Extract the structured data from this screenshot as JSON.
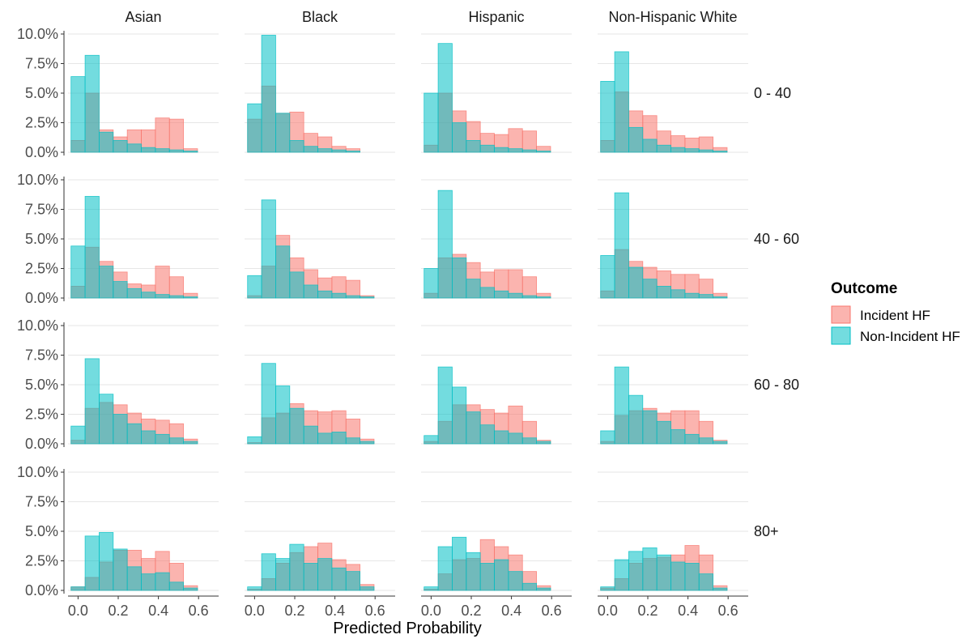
{
  "chart_data": {
    "type": "bar",
    "subtype": "faceted-histogram",
    "xlabel": "Predicted Probability",
    "ylabel": "",
    "ylim": [
      0,
      10
    ],
    "yticks": [
      "0.0%",
      "2.5%",
      "5.0%",
      "7.5%",
      "10.0%"
    ],
    "ytick_values": [
      0,
      2.5,
      5,
      7.5,
      10
    ],
    "xlim": [
      -0.05,
      0.7
    ],
    "xticks": [
      "0.0",
      "0.2",
      "0.4",
      "0.6"
    ],
    "xtick_values": [
      0,
      0.2,
      0.4,
      0.6
    ],
    "bin_centers": [
      0,
      0.07,
      0.14,
      0.21,
      0.28,
      0.35,
      0.42,
      0.49,
      0.56,
      0.63
    ],
    "bin_width": 0.07,
    "grid": true,
    "columns": [
      "Asian",
      "Black",
      "Hispanic",
      "Non-Hispanic White"
    ],
    "rows": [
      "0 - 40",
      "40 - 60",
      "60 - 80",
      "80+"
    ],
    "legend": {
      "title": "Outcome",
      "placement": "right",
      "entries": [
        {
          "name": "Incident HF",
          "color": "#F8766D"
        },
        {
          "name": "Non-Incident HF",
          "color": "#00BFC4"
        }
      ]
    },
    "series": [
      {
        "name": "Incident HF",
        "color": "#F8766D",
        "panels": [
          [
            [
              1.0,
              5.0,
              1.9,
              1.3,
              1.9,
              1.9,
              2.9,
              2.8,
              0.3,
              0.0
            ],
            [
              2.8,
              5.6,
              3.3,
              3.4,
              1.6,
              1.3,
              0.5,
              0.3,
              0.0,
              0.0
            ],
            [
              0.6,
              5.0,
              3.5,
              2.6,
              1.6,
              1.5,
              2.0,
              1.8,
              0.5,
              0.0
            ],
            [
              1.0,
              5.1,
              3.5,
              3.1,
              1.8,
              1.4,
              1.2,
              1.3,
              0.4,
              0.0
            ]
          ],
          [
            [
              1.0,
              4.3,
              3.1,
              2.2,
              1.2,
              1.1,
              2.7,
              1.8,
              0.4,
              0.0
            ],
            [
              0.2,
              2.7,
              5.3,
              3.4,
              2.4,
              1.7,
              1.8,
              1.5,
              0.2,
              0.0
            ],
            [
              0.4,
              3.4,
              3.7,
              3.0,
              2.2,
              2.4,
              2.4,
              1.8,
              0.4,
              0.0
            ],
            [
              0.6,
              4.1,
              3.1,
              2.6,
              2.3,
              2.0,
              2.0,
              1.6,
              0.4,
              0.0
            ]
          ],
          [
            [
              0.3,
              3.0,
              3.5,
              3.3,
              2.6,
              2.1,
              2.0,
              1.7,
              0.4,
              0.0
            ],
            [
              0.1,
              2.2,
              2.6,
              3.4,
              2.8,
              2.7,
              2.8,
              2.1,
              0.4,
              0.0
            ],
            [
              0.2,
              1.9,
              3.3,
              3.3,
              2.9,
              2.6,
              3.2,
              1.9,
              0.3,
              0.0
            ],
            [
              0.2,
              2.4,
              2.8,
              3.0,
              2.6,
              2.8,
              2.8,
              1.9,
              0.3,
              0.0
            ]
          ],
          [
            [
              0.3,
              1.1,
              2.4,
              3.4,
              3.4,
              2.7,
              3.3,
              2.3,
              0.4,
              0.0
            ],
            [
              0.1,
              1.0,
              2.3,
              3.2,
              3.7,
              4.0,
              2.6,
              2.2,
              0.5,
              0.0
            ],
            [
              0.1,
              1.4,
              2.6,
              2.7,
              4.3,
              3.7,
              3.0,
              1.6,
              0.4,
              0.0
            ],
            [
              0.2,
              1.0,
              2.3,
              2.7,
              2.8,
              3.0,
              3.8,
              3.0,
              0.4,
              0.0
            ]
          ]
        ]
      },
      {
        "name": "Non-Incident HF",
        "color": "#00BFC4",
        "panels": [
          [
            [
              6.4,
              8.2,
              1.7,
              1.0,
              0.7,
              0.4,
              0.3,
              0.2,
              0.1,
              0.0
            ],
            [
              4.1,
              9.9,
              3.3,
              1.0,
              0.5,
              0.3,
              0.2,
              0.1,
              0.0,
              0.0
            ],
            [
              5.0,
              9.2,
              2.5,
              1.0,
              0.6,
              0.4,
              0.3,
              0.2,
              0.1,
              0.0
            ],
            [
              6.0,
              8.5,
              2.1,
              1.1,
              0.6,
              0.4,
              0.3,
              0.2,
              0.1,
              0.0
            ]
          ],
          [
            [
              4.4,
              8.6,
              2.7,
              1.4,
              0.8,
              0.5,
              0.3,
              0.2,
              0.1,
              0.0
            ],
            [
              1.9,
              8.3,
              4.4,
              2.2,
              1.1,
              0.6,
              0.4,
              0.2,
              0.1,
              0.0
            ],
            [
              2.5,
              9.1,
              3.4,
              1.6,
              0.9,
              0.6,
              0.4,
              0.2,
              0.1,
              0.0
            ],
            [
              3.6,
              8.9,
              2.6,
              1.6,
              1.0,
              0.7,
              0.4,
              0.3,
              0.1,
              0.0
            ]
          ],
          [
            [
              1.5,
              7.2,
              4.2,
              2.5,
              1.7,
              1.1,
              0.8,
              0.5,
              0.2,
              0.0
            ],
            [
              0.6,
              6.8,
              4.9,
              3.0,
              1.5,
              0.9,
              1.0,
              0.5,
              0.2,
              0.0
            ],
            [
              0.7,
              6.5,
              4.8,
              2.7,
              1.6,
              1.1,
              0.9,
              0.5,
              0.2,
              0.0
            ],
            [
              1.1,
              6.5,
              4.1,
              2.8,
              1.9,
              1.2,
              0.8,
              0.5,
              0.2,
              0.0
            ]
          ],
          [
            [
              0.3,
              4.6,
              4.9,
              3.5,
              2.0,
              1.4,
              1.5,
              0.7,
              0.2,
              0.0
            ],
            [
              0.3,
              3.1,
              2.7,
              3.9,
              2.3,
              2.7,
              1.9,
              1.6,
              0.3,
              0.0
            ],
            [
              0.3,
              3.7,
              4.5,
              3.2,
              2.3,
              2.6,
              1.6,
              0.6,
              0.2,
              0.0
            ],
            [
              0.3,
              2.6,
              3.3,
              3.6,
              3.0,
              2.4,
              2.3,
              1.4,
              0.2,
              0.0
            ]
          ]
        ]
      }
    ]
  }
}
